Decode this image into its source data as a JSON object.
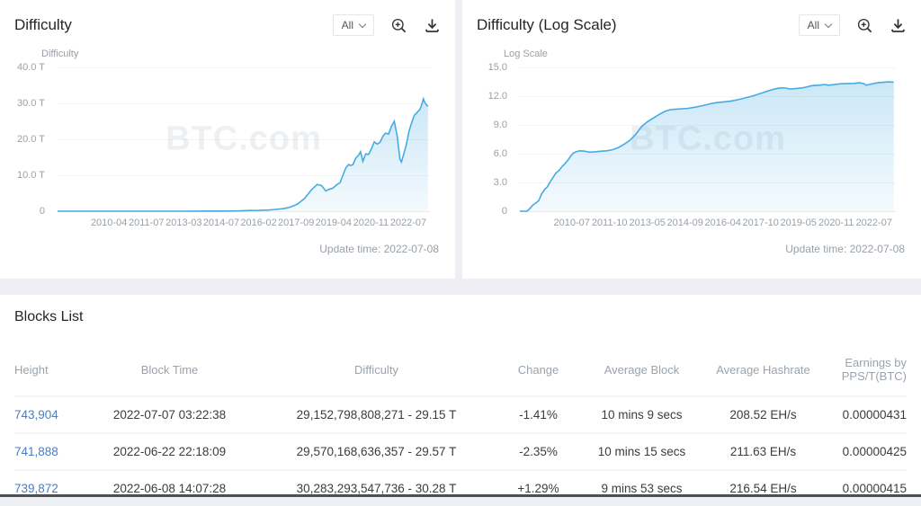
{
  "panels": [
    {
      "title": "Difficulty",
      "range_label": "All",
      "update_time": "Update time: 2022-07-08"
    },
    {
      "title": "Difficulty (Log Scale)",
      "range_label": "All",
      "update_time": "Update time: 2022-07-08"
    }
  ],
  "icons": [
    "chevron-down-icon",
    "zoom-in-icon",
    "download-icon"
  ],
  "colors": {
    "line": "#45abe3",
    "link": "#4a7dc6",
    "negative": "#e2605f",
    "positive": "#36b37e"
  },
  "chart_data": [
    {
      "type": "line",
      "title": "Difficulty",
      "ylabel": "Difficulty",
      "watermark": "BTC.com",
      "line_color": "#45abe3",
      "ylim": [
        0,
        40
      ],
      "xlim": [
        2009.6,
        2022.65
      ],
      "yticks": [
        {
          "v": 0,
          "label": "0"
        },
        {
          "v": 10,
          "label": "10.0 T"
        },
        {
          "v": 20,
          "label": "20.0 T"
        },
        {
          "v": 30,
          "label": "30.0 T"
        },
        {
          "v": 40,
          "label": "40.0 T"
        }
      ],
      "xticks": [
        "2010-04",
        "2011-07",
        "2013-03",
        "2014-07",
        "2016-02",
        "2017-09",
        "2019-04",
        "2020-11",
        "2022-07"
      ],
      "unit": "T (trillions of difficulty)",
      "points": [
        [
          2009.6,
          0
        ],
        [
          2010.0,
          0
        ],
        [
          2010.5,
          0
        ],
        [
          2011.0,
          0
        ],
        [
          2011.5,
          0
        ],
        [
          2012.0,
          0
        ],
        [
          2012.5,
          0
        ],
        [
          2013.0,
          0
        ],
        [
          2013.5,
          0
        ],
        [
          2014.0,
          0.001
        ],
        [
          2014.5,
          0.013
        ],
        [
          2015.0,
          0.044
        ],
        [
          2015.5,
          0.049
        ],
        [
          2016.0,
          0.1
        ],
        [
          2016.33,
          0.19
        ],
        [
          2016.66,
          0.22
        ],
        [
          2017.0,
          0.32
        ],
        [
          2017.25,
          0.5
        ],
        [
          2017.5,
          0.71
        ],
        [
          2017.75,
          1.12
        ],
        [
          2018.0,
          1.93
        ],
        [
          2018.25,
          3.51
        ],
        [
          2018.5,
          5.95
        ],
        [
          2018.7,
          7.45
        ],
        [
          2018.85,
          7.15
        ],
        [
          2019.0,
          5.62
        ],
        [
          2019.1,
          6.06
        ],
        [
          2019.25,
          6.39
        ],
        [
          2019.4,
          7.46
        ],
        [
          2019.5,
          7.93
        ],
        [
          2019.6,
          9.99
        ],
        [
          2019.7,
          12.0
        ],
        [
          2019.8,
          13.0
        ],
        [
          2019.87,
          12.72
        ],
        [
          2019.95,
          12.95
        ],
        [
          2020.05,
          14.78
        ],
        [
          2020.15,
          15.55
        ],
        [
          2020.22,
          16.55
        ],
        [
          2020.3,
          13.91
        ],
        [
          2020.4,
          15.96
        ],
        [
          2020.5,
          15.78
        ],
        [
          2020.6,
          17.35
        ],
        [
          2020.7,
          19.31
        ],
        [
          2020.8,
          18.67
        ],
        [
          2020.9,
          19.16
        ],
        [
          2021.0,
          20.82
        ],
        [
          2021.1,
          21.72
        ],
        [
          2021.2,
          21.45
        ],
        [
          2021.3,
          23.58
        ],
        [
          2021.4,
          25.05
        ],
        [
          2021.5,
          21.05
        ],
        [
          2021.6,
          14.5
        ],
        [
          2021.65,
          13.67
        ],
        [
          2021.72,
          15.56
        ],
        [
          2021.82,
          18.42
        ],
        [
          2021.92,
          22.34
        ],
        [
          2022.0,
          24.37
        ],
        [
          2022.1,
          26.64
        ],
        [
          2022.2,
          27.45
        ],
        [
          2022.3,
          28.35
        ],
        [
          2022.37,
          29.79
        ],
        [
          2022.42,
          31.25
        ],
        [
          2022.47,
          30.28
        ],
        [
          2022.53,
          29.57
        ],
        [
          2022.58,
          29.15
        ]
      ]
    },
    {
      "type": "area",
      "title": "Difficulty (Log Scale)",
      "ylabel": "Log Scale",
      "watermark": "BTC.com",
      "line_color": "#45abe3",
      "ylim": [
        0,
        15
      ],
      "xlim": [
        2009.7,
        2022.65
      ],
      "yticks": [
        {
          "v": 0,
          "label": "0"
        },
        {
          "v": 3,
          "label": "3.0"
        },
        {
          "v": 6,
          "label": "6.0"
        },
        {
          "v": 9,
          "label": "9.0"
        },
        {
          "v": 12,
          "label": "12.0"
        },
        {
          "v": 15,
          "label": "15.0"
        }
      ],
      "xticks": [
        "2010-07",
        "2011-10",
        "2013-05",
        "2014-09",
        "2016-04",
        "2017-10",
        "2019-05",
        "2020-11",
        "2022-07"
      ],
      "unit": "log10(difficulty)",
      "points": [
        [
          2009.7,
          0
        ],
        [
          2009.95,
          0
        ],
        [
          2010.05,
          0.3
        ],
        [
          2010.15,
          0.65
        ],
        [
          2010.25,
          0.85
        ],
        [
          2010.35,
          1.1
        ],
        [
          2010.45,
          1.8
        ],
        [
          2010.55,
          2.26
        ],
        [
          2010.65,
          2.55
        ],
        [
          2010.75,
          3.1
        ],
        [
          2010.85,
          3.55
        ],
        [
          2010.95,
          4.0
        ],
        [
          2011.05,
          4.25
        ],
        [
          2011.15,
          4.65
        ],
        [
          2011.25,
          4.95
        ],
        [
          2011.35,
          5.3
        ],
        [
          2011.45,
          5.75
        ],
        [
          2011.55,
          6.08
        ],
        [
          2011.65,
          6.22
        ],
        [
          2011.75,
          6.3
        ],
        [
          2011.9,
          6.27
        ],
        [
          2012.1,
          6.16
        ],
        [
          2012.3,
          6.2
        ],
        [
          2012.5,
          6.26
        ],
        [
          2012.7,
          6.3
        ],
        [
          2012.9,
          6.42
        ],
        [
          2013.1,
          6.65
        ],
        [
          2013.3,
          7.0
        ],
        [
          2013.5,
          7.42
        ],
        [
          2013.7,
          8.05
        ],
        [
          2013.9,
          8.85
        ],
        [
          2014.1,
          9.35
        ],
        [
          2014.3,
          9.72
        ],
        [
          2014.5,
          10.1
        ],
        [
          2014.7,
          10.42
        ],
        [
          2014.9,
          10.6
        ],
        [
          2015.1,
          10.65
        ],
        [
          2015.3,
          10.69
        ],
        [
          2015.5,
          10.73
        ],
        [
          2015.75,
          10.86
        ],
        [
          2016.0,
          11.02
        ],
        [
          2016.25,
          11.2
        ],
        [
          2016.5,
          11.33
        ],
        [
          2016.75,
          11.41
        ],
        [
          2017.0,
          11.5
        ],
        [
          2017.25,
          11.66
        ],
        [
          2017.5,
          11.85
        ],
        [
          2017.75,
          12.05
        ],
        [
          2018.0,
          12.29
        ],
        [
          2018.25,
          12.55
        ],
        [
          2018.5,
          12.77
        ],
        [
          2018.7,
          12.87
        ],
        [
          2018.85,
          12.84
        ],
        [
          2019.0,
          12.75
        ],
        [
          2019.25,
          12.81
        ],
        [
          2019.5,
          12.9
        ],
        [
          2019.75,
          13.1
        ],
        [
          2020.0,
          13.14
        ],
        [
          2020.22,
          13.22
        ],
        [
          2020.32,
          13.14
        ],
        [
          2020.5,
          13.2
        ],
        [
          2020.75,
          13.29
        ],
        [
          2021.0,
          13.32
        ],
        [
          2021.2,
          13.33
        ],
        [
          2021.4,
          13.4
        ],
        [
          2021.55,
          13.3
        ],
        [
          2021.63,
          13.14
        ],
        [
          2021.8,
          13.27
        ],
        [
          2022.0,
          13.39
        ],
        [
          2022.2,
          13.44
        ],
        [
          2022.42,
          13.49
        ],
        [
          2022.58,
          13.46
        ]
      ]
    }
  ],
  "blocks": {
    "title": "Blocks List",
    "columns": [
      "Height",
      "Block Time",
      "Difficulty",
      "Change",
      "Average Block",
      "Average Hashrate",
      "Earnings by PPS/T(BTC)"
    ],
    "rows": [
      {
        "height": "743,904",
        "block_time": "2022-07-07 03:22:38",
        "difficulty": "29,152,798,808,271 - 29.15 T",
        "change": "-1.41%",
        "change_dir": "down",
        "avg_block": "10 mins 9 secs",
        "avg_hashrate": "208.52 EH/s",
        "earnings": "0.00000431"
      },
      {
        "height": "741,888",
        "block_time": "2022-06-22 22:18:09",
        "difficulty": "29,570,168,636,357 - 29.57 T",
        "change": "-2.35%",
        "change_dir": "down",
        "avg_block": "10 mins 15 secs",
        "avg_hashrate": "211.63 EH/s",
        "earnings": "0.00000425"
      },
      {
        "height": "739,872",
        "block_time": "2022-06-08 14:07:28",
        "difficulty": "30,283,293,547,736 - 30.28 T",
        "change": "+1.29%",
        "change_dir": "up",
        "avg_block": "9 mins 53 secs",
        "avg_hashrate": "216.54 EH/s",
        "earnings": "0.00000415"
      }
    ]
  }
}
